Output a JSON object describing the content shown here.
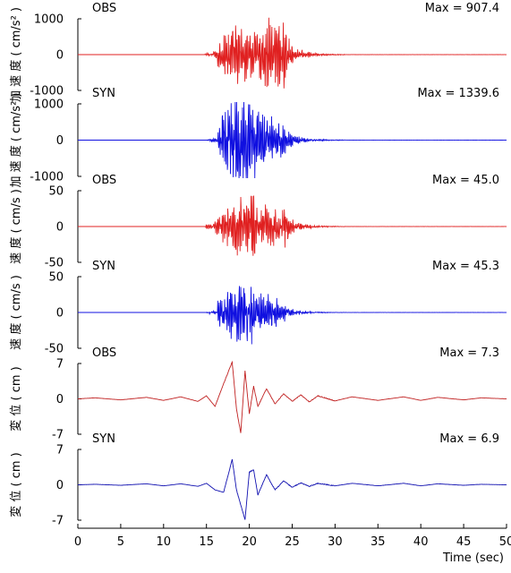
{
  "chart_data": [
    {
      "type": "line",
      "label": "OBS",
      "max_text": "Max = 907.4",
      "ylabel": "加 速 度 ( cm/s² )",
      "ylim": [
        -1000,
        1000
      ],
      "yticks": [
        "1000",
        "0",
        "-1000"
      ],
      "color": "#e02020",
      "series": [
        {
          "x": [
            0,
            15.0,
            16.0,
            17.0,
            17.5,
            18.0,
            18.5,
            19.0,
            19.5,
            20.0,
            20.5,
            21.0,
            21.5,
            22.0,
            22.5,
            23.0,
            23.5,
            24.0,
            25.0,
            26.0,
            28.0,
            30.0,
            35.0,
            40.0,
            50.0
          ],
          "y": [
            0,
            0,
            30,
            120,
            350,
            620,
            -500,
            780,
            -650,
            560,
            -620,
            580,
            -500,
            700,
            -450,
            900,
            -600,
            350,
            200,
            150,
            90,
            60,
            30,
            20,
            0
          ]
        }
      ]
    },
    {
      "type": "line",
      "label": "SYN",
      "max_text": "Max = 1339.6",
      "ylabel": "加 速 度 ( cm/s² )",
      "ylim": [
        -1000,
        1000
      ],
      "yticks": [
        "1000",
        "0",
        "-1000"
      ],
      "color": "#1010e0",
      "series": [
        {
          "x": [
            0,
            15.0,
            16.5,
            17.5,
            18.0,
            18.5,
            19.0,
            19.5,
            20.0,
            20.5,
            21.0,
            21.5,
            22.0,
            22.5,
            23.0,
            24.0,
            25.0,
            26.0,
            28.0,
            30.0,
            35.0,
            40.0,
            50.0
          ],
          "y": [
            0,
            0,
            50,
            400,
            750,
            -950,
            900,
            -1300,
            850,
            -700,
            650,
            -600,
            500,
            -450,
            400,
            250,
            150,
            100,
            70,
            50,
            30,
            20,
            0
          ]
        }
      ]
    },
    {
      "type": "line",
      "label": "OBS",
      "max_text": "Max = 45.0",
      "ylabel": "速 度 ( cm/s )",
      "ylim": [
        -50,
        50
      ],
      "yticks": [
        "50",
        "0",
        "-50"
      ],
      "color": "#e02020",
      "series": [
        {
          "x": [
            0,
            15.0,
            16.0,
            17.0,
            17.5,
            18.0,
            18.5,
            19.0,
            19.5,
            20.0,
            20.5,
            21.0,
            21.5,
            22.0,
            22.5,
            23.0,
            23.5,
            24.0,
            25.0,
            26.0,
            28.0,
            30.0,
            35.0,
            40.0,
            50.0
          ],
          "y": [
            0,
            0,
            -3,
            10,
            -15,
            25,
            -30,
            30,
            -45,
            28,
            -20,
            25,
            -25,
            20,
            -15,
            32,
            -20,
            15,
            8,
            5,
            3,
            2,
            1,
            1,
            0
          ]
        }
      ]
    },
    {
      "type": "line",
      "label": "SYN",
      "max_text": "Max = 45.3",
      "ylabel": "速 度 ( cm/s )",
      "ylim": [
        -50,
        50
      ],
      "yticks": [
        "50",
        "0",
        "-50"
      ],
      "color": "#1010e0",
      "series": [
        {
          "x": [
            0,
            15.0,
            16.5,
            17.5,
            18.0,
            18.5,
            19.0,
            19.5,
            20.0,
            20.5,
            21.0,
            21.5,
            22.0,
            22.5,
            23.0,
            24.0,
            25.0,
            26.0,
            28.0,
            30.0,
            35.0,
            40.0,
            50.0
          ],
          "y": [
            0,
            0,
            -2,
            18,
            -25,
            30,
            38,
            -45,
            25,
            -20,
            25,
            -15,
            18,
            -10,
            12,
            6,
            4,
            3,
            2,
            1,
            1,
            0,
            0
          ]
        }
      ]
    },
    {
      "type": "line",
      "label": "OBS",
      "max_text": "Max = 7.3",
      "ylabel": "変 位 ( cm )",
      "ylim": [
        -7,
        7
      ],
      "yticks": [
        "7",
        "0",
        "-7"
      ],
      "color": "#c02020",
      "series": [
        {
          "x": [
            0,
            2,
            5,
            8,
            10,
            12,
            14,
            15,
            16,
            17,
            18,
            18.5,
            19,
            19.5,
            20,
            20.5,
            21,
            22,
            23,
            24,
            25,
            26,
            27,
            28,
            30,
            32,
            35,
            38,
            40,
            42,
            45,
            47,
            50
          ],
          "y": [
            0,
            0.2,
            -0.2,
            0.3,
            -0.3,
            0.4,
            -0.5,
            0.6,
            -1.5,
            3.0,
            7.3,
            -2.0,
            -6.8,
            5.5,
            -3.0,
            2.5,
            -1.5,
            2.0,
            -1.0,
            1.0,
            -0.5,
            0.8,
            -0.6,
            0.6,
            -0.4,
            0.4,
            -0.3,
            0.4,
            -0.3,
            0.3,
            -0.2,
            0.2,
            0
          ]
        }
      ]
    },
    {
      "type": "line",
      "label": "SYN",
      "max_text": "Max = 6.9",
      "ylabel": "変 位 ( cm )",
      "ylim": [
        -7,
        7
      ],
      "yticks": [
        "7",
        "0",
        "-7"
      ],
      "color": "#1010b0",
      "series": [
        {
          "x": [
            0,
            2,
            5,
            8,
            10,
            12,
            14,
            15,
            16,
            17,
            18,
            18.5,
            19,
            19.5,
            20,
            20.5,
            21,
            22,
            23,
            24,
            25,
            26,
            27,
            28,
            30,
            32,
            35,
            38,
            40,
            42,
            45,
            47,
            50
          ],
          "y": [
            0,
            0.1,
            -0.1,
            0.2,
            -0.2,
            0.2,
            -0.3,
            0.3,
            -1.0,
            -1.5,
            5.0,
            -1.0,
            -4.0,
            -6.9,
            2.5,
            3.0,
            -2.0,
            2.0,
            -1.0,
            0.8,
            -0.5,
            0.4,
            -0.3,
            0.3,
            -0.2,
            0.3,
            -0.2,
            0.3,
            -0.2,
            0.2,
            -0.1,
            0.1,
            0
          ]
        }
      ]
    }
  ],
  "x_axis": {
    "label": "Time (sec)",
    "ticks": [
      "0",
      "5",
      "10",
      "15",
      "20",
      "25",
      "30",
      "35",
      "40",
      "45",
      "50"
    ],
    "xlim": [
      0,
      50
    ]
  }
}
